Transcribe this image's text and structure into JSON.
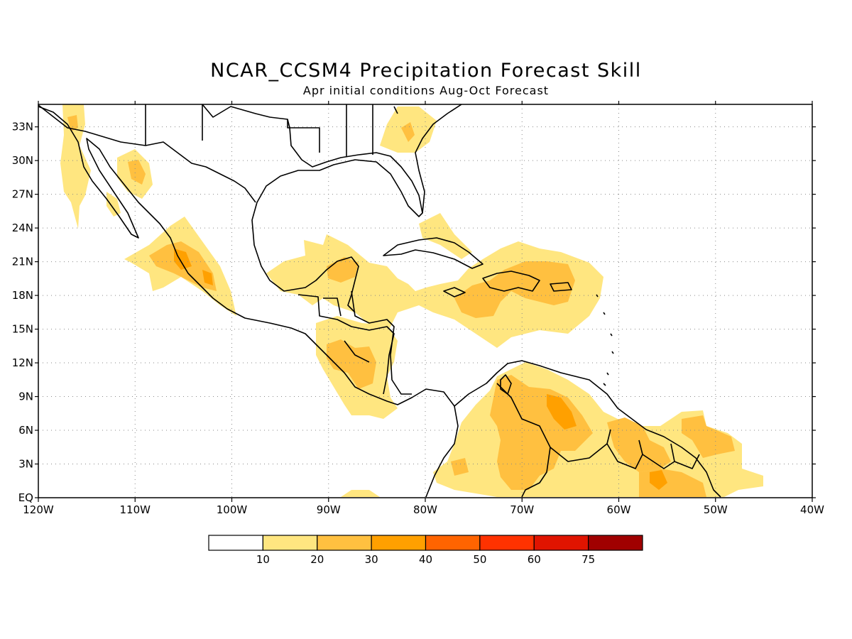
{
  "title": "NCAR_CCSM4 Precipitation Forecast Skill",
  "subtitle": "Apr initial conditions  Aug-Oct Forecast",
  "map": {
    "lon_range": [
      -120,
      -40
    ],
    "lat_range": [
      0,
      35
    ],
    "x_ticks": [
      {
        "lon": -120,
        "label": "120W"
      },
      {
        "lon": -110,
        "label": "110W"
      },
      {
        "lon": -100,
        "label": "100W"
      },
      {
        "lon": -90,
        "label": "90W"
      },
      {
        "lon": -80,
        "label": "80W"
      },
      {
        "lon": -70,
        "label": "70W"
      },
      {
        "lon": -60,
        "label": "60W"
      },
      {
        "lon": -50,
        "label": "50W"
      },
      {
        "lon": -40,
        "label": "40W"
      }
    ],
    "y_ticks": [
      {
        "lat": 0,
        "label": "EQ"
      },
      {
        "lat": 3,
        "label": "3N"
      },
      {
        "lat": 6,
        "label": "6N"
      },
      {
        "lat": 9,
        "label": "9N"
      },
      {
        "lat": 12,
        "label": "12N"
      },
      {
        "lat": 15,
        "label": "15N"
      },
      {
        "lat": 18,
        "label": "18N"
      },
      {
        "lat": 21,
        "label": "21N"
      },
      {
        "lat": 24,
        "label": "24N"
      },
      {
        "lat": 27,
        "label": "27N"
      },
      {
        "lat": 30,
        "label": "30N"
      },
      {
        "lat": 33,
        "label": "33N"
      }
    ],
    "grid": true,
    "coastline_color": "#000000"
  },
  "colorbar": {
    "labels": [
      "10",
      "20",
      "30",
      "40",
      "50",
      "60",
      "75"
    ],
    "colors": [
      "#ffffff",
      "#ffe680",
      "#ffc040",
      "#ffa000",
      "#ff6400",
      "#ff3200",
      "#e01400",
      "#a00000"
    ]
  }
}
